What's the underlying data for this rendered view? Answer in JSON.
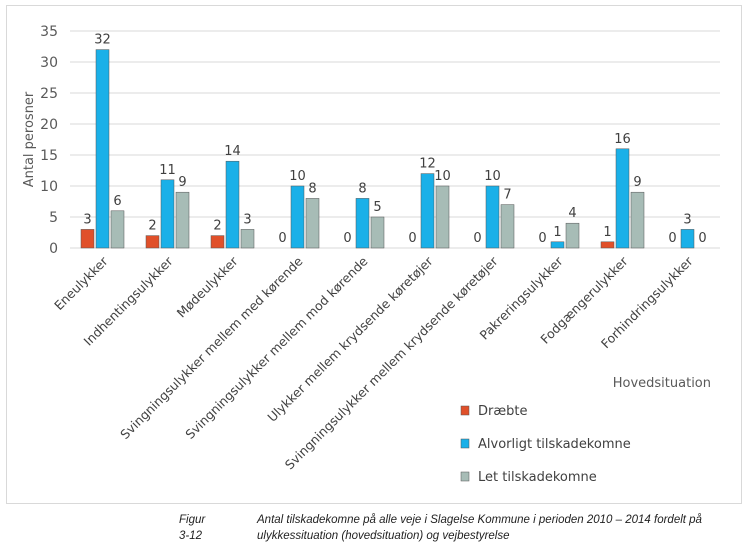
{
  "chart_data": {
    "type": "bar",
    "ylabel": "Antal perosner",
    "xlabel": "Hovedsituation",
    "ylim": [
      0,
      35
    ],
    "yticks": [
      0,
      5,
      10,
      15,
      20,
      25,
      30,
      35
    ],
    "grid": true,
    "legend_position": "bottom-right",
    "categories": [
      "Eneulykker",
      "Indhentingsulykker",
      "Mødeulykker",
      "Svingningsulykker mellem med kørende",
      "Svingningsulykker mellem mod kørende",
      "Ulykker mellem krydsende køretøjer",
      "Svingningsulykker mellem krydsende køretøjer",
      "Pakreringsulykker",
      "Fodgængerulykker",
      "Forhindringsulykker"
    ],
    "series": [
      {
        "name": "Dræbte",
        "color": "#e0502a",
        "values": [
          3,
          2,
          2,
          0,
          0,
          0,
          0,
          0,
          1,
          0
        ]
      },
      {
        "name": "Alvorligt tilskadekomne",
        "color": "#1ab0e8",
        "values": [
          32,
          11,
          14,
          10,
          8,
          12,
          10,
          1,
          16,
          3
        ]
      },
      {
        "name": "Let tilskadekomne",
        "color": "#a7bcb6",
        "values": [
          6,
          9,
          3,
          8,
          5,
          10,
          7,
          4,
          9,
          0
        ]
      }
    ]
  },
  "caption": {
    "number": "Figur 3-12",
    "text": "Antal tilskadekomne på alle veje i Slagelse Kommune i perioden 2010 – 2014 fordelt på ulykkessituation (hovedsituation) og vejbestyrelse"
  }
}
